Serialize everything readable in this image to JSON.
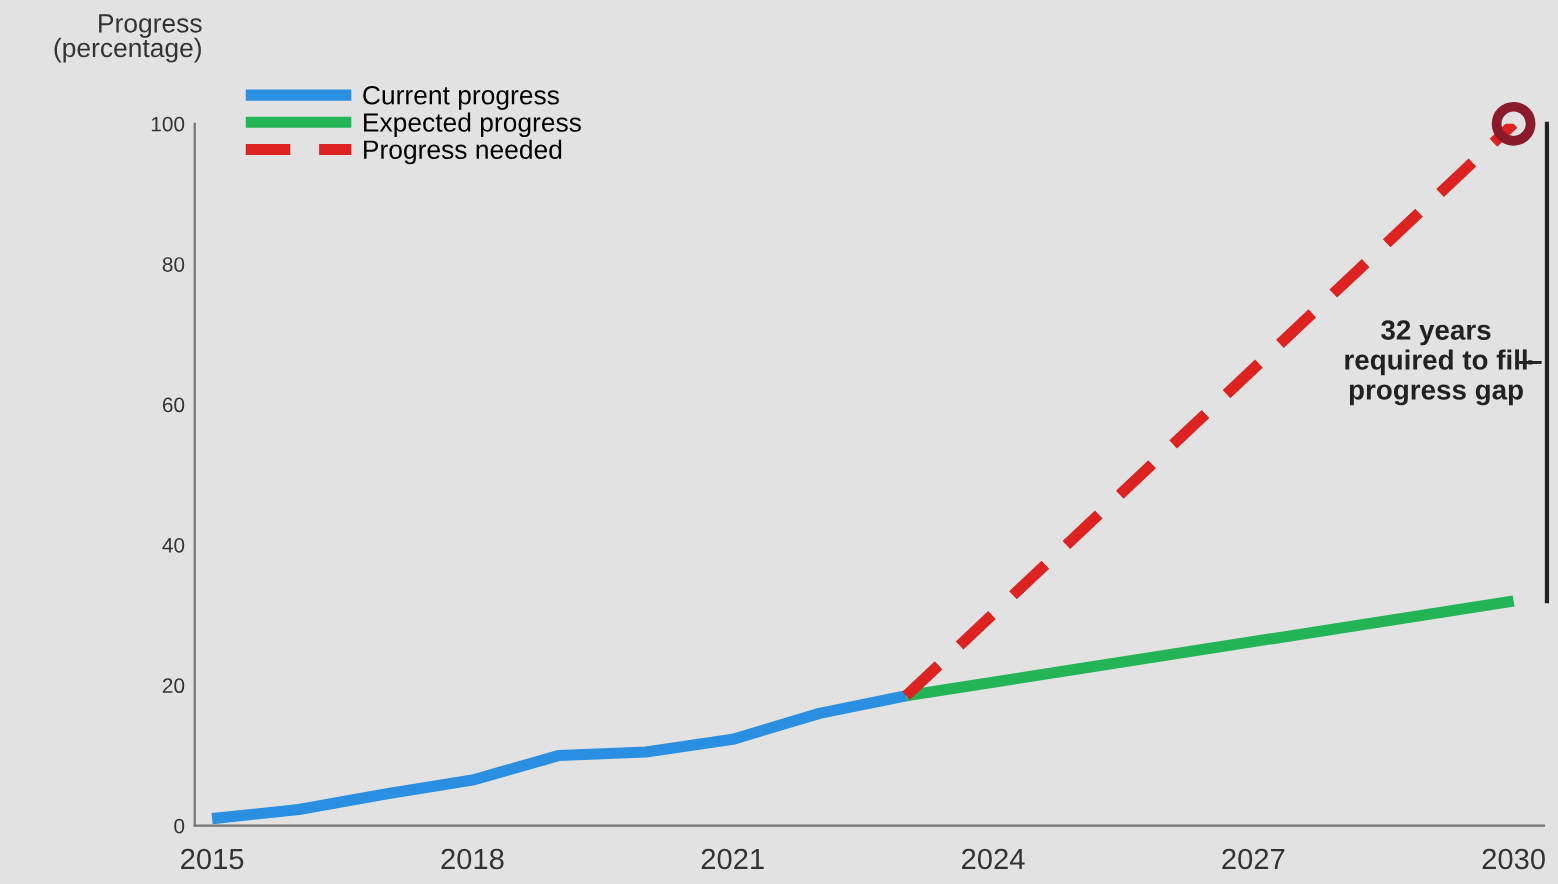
{
  "chart_data": {
    "type": "line",
    "ylabel": "Progress\n(percentage)",
    "xlim": [
      2014.8,
      2030.35
    ],
    "xticks": [
      2015,
      2018,
      2021,
      2024,
      2027,
      2030
    ],
    "ylim": [
      0,
      100
    ],
    "yticks": [
      0,
      20,
      40,
      60,
      80,
      100
    ],
    "grid": false,
    "legend": "top left",
    "marker": "none",
    "series": [
      {
        "name": "Current progress",
        "color": "#2a8fe0",
        "x": [
          2015,
          2016,
          2017,
          2018,
          2019,
          2020,
          2021,
          2022,
          2023
        ],
        "values": [
          1,
          2.3,
          4.5,
          6.5,
          10,
          10.5,
          12.3,
          16,
          18.5
        ],
        "line_style": "solid"
      },
      {
        "name": "Expected progress",
        "color": "#22b455",
        "x": [
          2023,
          2030
        ],
        "values": [
          18.5,
          32
        ],
        "line_style": "solid"
      },
      {
        "name": "Progress needed",
        "color": "#dd2222",
        "x": [
          2023,
          2030
        ],
        "values": [
          18.5,
          100
        ],
        "line_style": "dashed"
      },
      {
        "type": "scatter",
        "color": "#8b1a2b",
        "x": [
          2030
        ],
        "values": [
          100
        ],
        "marker": "circle"
      }
    ],
    "annotations": [
      "32 years\nrequired to fill\nprogress gap"
    ]
  }
}
